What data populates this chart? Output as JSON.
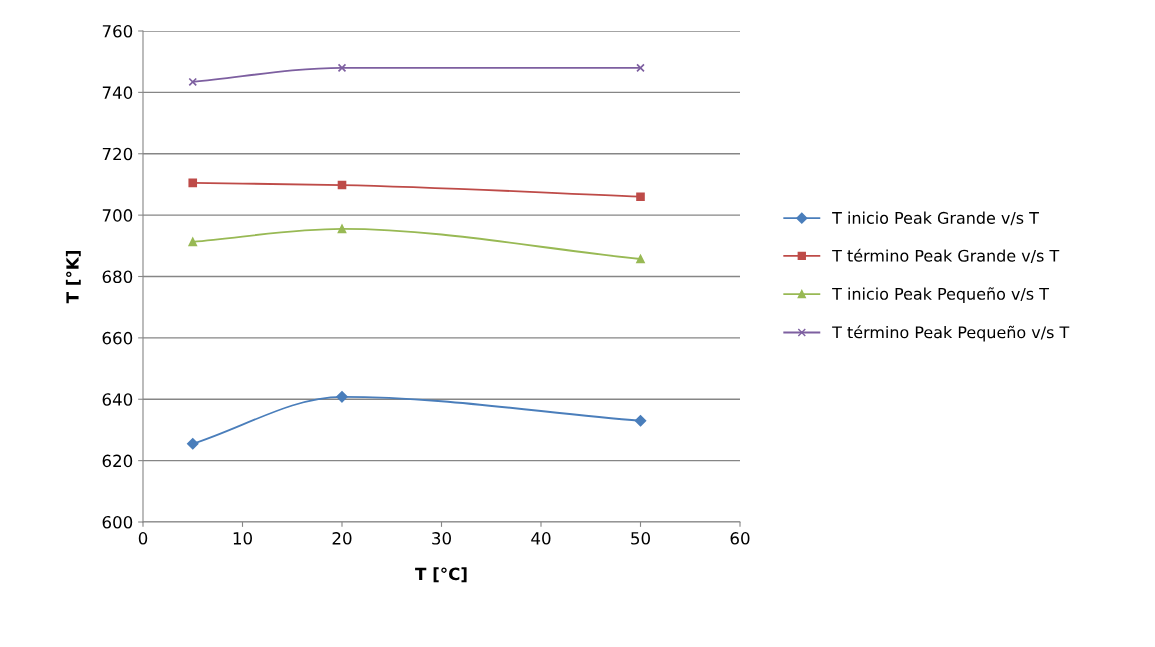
{
  "chart_data": {
    "type": "line",
    "xlabel": "T [°C]",
    "ylabel": "T [°K]",
    "x": [
      5,
      20,
      50
    ],
    "series": [
      {
        "name": "T inicio Peak Grande v/s T",
        "color": "#4a7ebb",
        "marker": "diamond",
        "values": [
          625.5,
          640.8,
          633
        ]
      },
      {
        "name": "T término Peak Grande v/s T",
        "color": "#be4b48",
        "marker": "square",
        "values": [
          710.5,
          709.8,
          706
        ]
      },
      {
        "name": "T inicio Peak Pequeño v/s T",
        "color": "#98b954",
        "marker": "triangle",
        "values": [
          691.3,
          695.5,
          685.7
        ]
      },
      {
        "name": "T término Peak Pequeño v/s T",
        "color": "#7d5fa0",
        "marker": "cross",
        "values": [
          743.4,
          748,
          748
        ]
      }
    ],
    "xlim": [
      0,
      60
    ],
    "xticks": [
      0,
      10,
      20,
      30,
      40,
      50,
      60
    ],
    "ylim": [
      600,
      760
    ],
    "yticks": [
      600,
      620,
      640,
      660,
      680,
      700,
      720,
      740,
      760
    ],
    "grid": "y",
    "legend": "right"
  }
}
